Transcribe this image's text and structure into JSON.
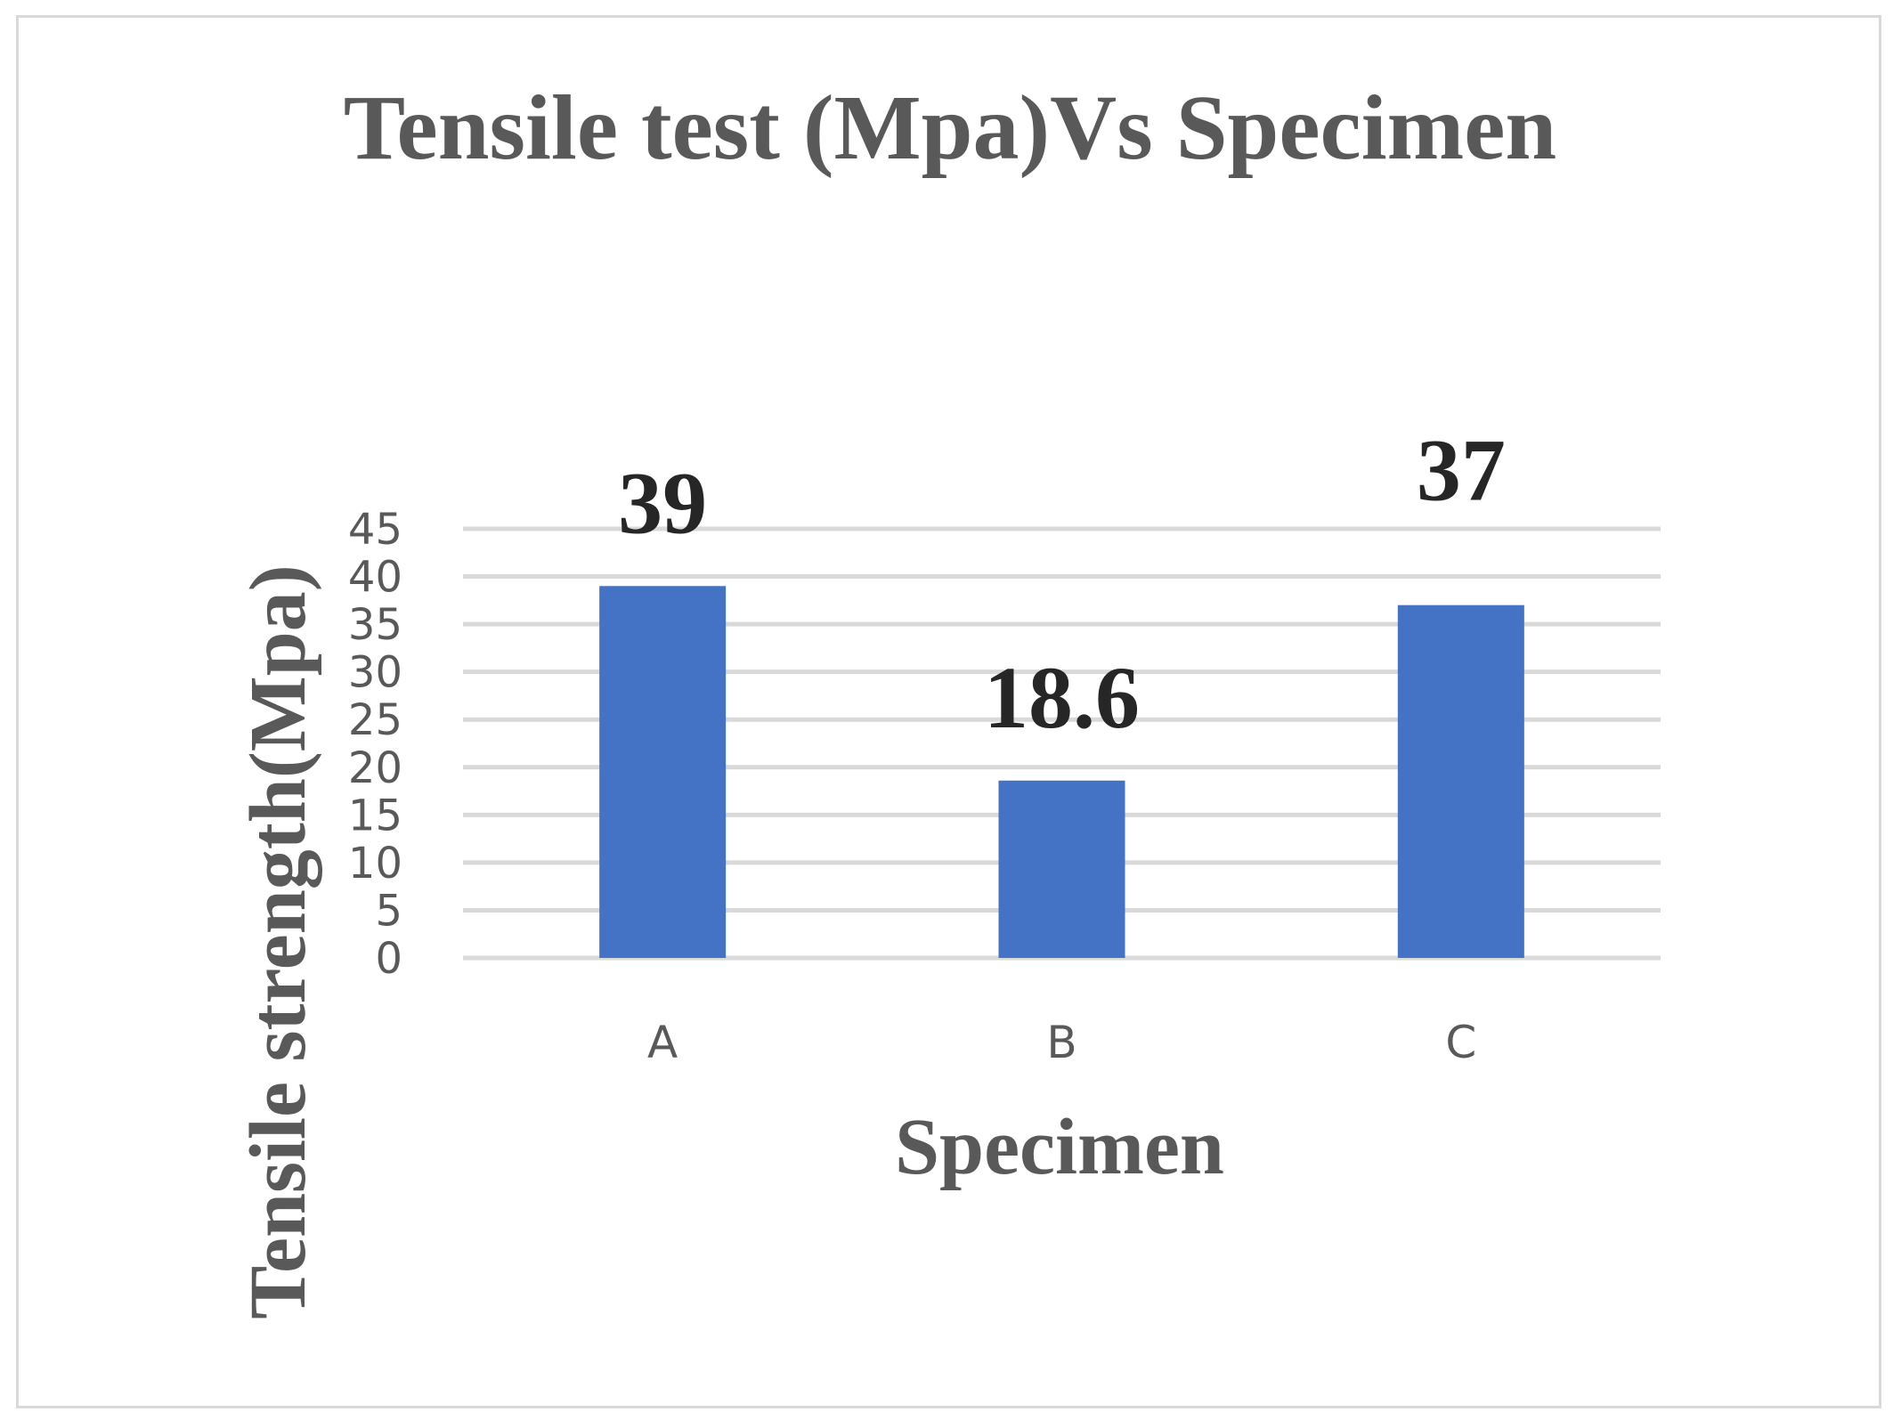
{
  "chart_data": {
    "type": "bar",
    "title": "Tensile test (Mpa)Vs Specimen",
    "xlabel": "Specimen",
    "ylabel": "Tensile strength(Mpa)",
    "categories": [
      "A",
      "B",
      "C"
    ],
    "values": [
      39,
      18.6,
      37
    ],
    "data_labels": [
      "39",
      "18.6",
      "37"
    ],
    "ylim": [
      0,
      45
    ],
    "yticks": [
      "0",
      "5",
      "10",
      "15",
      "20",
      "25",
      "30",
      "35",
      "40",
      "45"
    ],
    "grid": true,
    "legend": "none",
    "colors": {
      "bar": "#4472C4",
      "grid": "#d9d9d9",
      "text": "#595959",
      "data_label": "#262626",
      "border": "#d9d9d9"
    }
  }
}
